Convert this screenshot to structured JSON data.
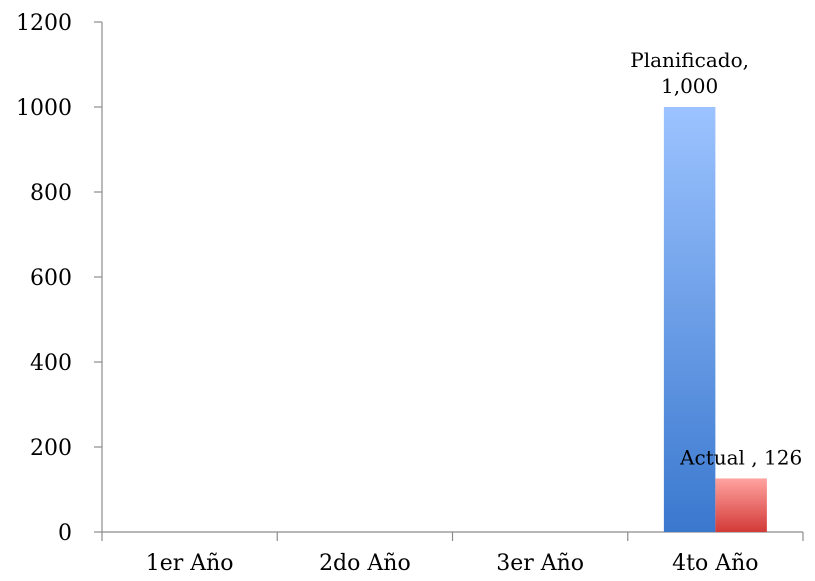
{
  "chart_data": {
    "type": "bar",
    "categories": [
      "1er Año",
      "2do Año",
      "3er Año",
      "4to Año"
    ],
    "series": [
      {
        "name": "Planificado",
        "values": [
          null,
          null,
          null,
          1000
        ],
        "color_top": "#9CC3FF",
        "color_bottom": "#3A78CE"
      },
      {
        "name": "Actual",
        "values": [
          null,
          null,
          null,
          126
        ],
        "color_top": "#FFA3A0",
        "color_bottom": "#D23A37"
      }
    ],
    "data_labels": [
      {
        "series": "Planificado",
        "category": "4to Año",
        "lines": [
          "Planificado,",
          "1,000"
        ]
      },
      {
        "series": "Actual",
        "category": "4to Año",
        "lines": [
          "Actual ,  126"
        ]
      }
    ],
    "yticks": [
      "0",
      "200",
      "400",
      "600",
      "800",
      "1000",
      "1200"
    ],
    "ylim": [
      0,
      1200
    ],
    "grid": false,
    "legend": "none"
  }
}
